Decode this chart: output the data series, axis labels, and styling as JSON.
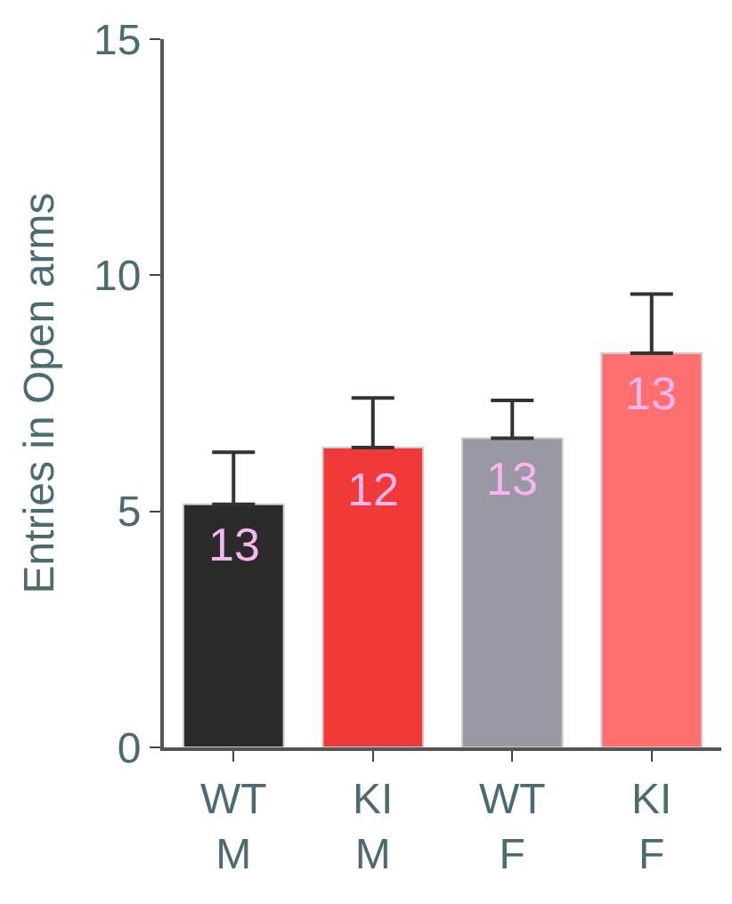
{
  "chart_data": {
    "type": "bar",
    "ylabel": "Entries in Open arms",
    "categories": [
      "WT\nM",
      "KI\nM",
      "WT\nF",
      "KI\nF"
    ],
    "values": [
      5.15,
      6.35,
      6.55,
      8.35
    ],
    "colors": [
      "#2b2b2b",
      "#f03a3a",
      "#9a98a3",
      "#ff6f6f"
    ],
    "errors": [
      [
        5.15,
        6.25
      ],
      [
        6.35,
        7.4
      ],
      [
        6.55,
        7.35
      ],
      [
        8.35,
        9.6
      ]
    ],
    "ylim": [
      0,
      15
    ],
    "yticks": [
      0,
      5,
      10,
      15
    ],
    "annotations": [
      "13",
      "12",
      "13",
      "13"
    ]
  }
}
